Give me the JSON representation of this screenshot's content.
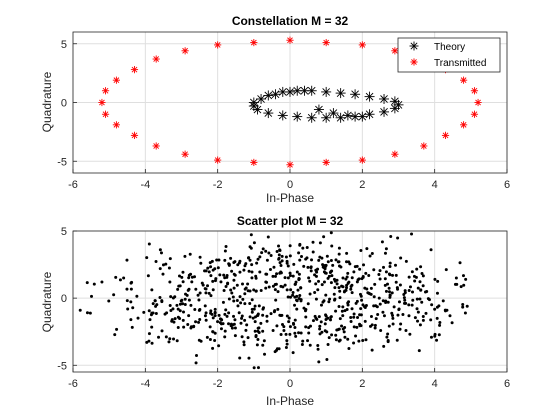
{
  "chart_data": [
    {
      "type": "scatter",
      "title": "Constellation M = 32",
      "xlabel": "In-Phase",
      "ylabel": "Quadrature",
      "xlim": [
        -6,
        6
      ],
      "ylim": [
        -6,
        6
      ],
      "xticks": [
        -6,
        -4,
        -2,
        0,
        2,
        4,
        6
      ],
      "yticks": [
        -5,
        0,
        5
      ],
      "grid": true,
      "legend_position": "top-right",
      "legend": [
        "Theory",
        "Transmitted"
      ],
      "series": [
        {
          "name": "Theory",
          "marker": "asterisk",
          "color": "#000000",
          "note_cluster_center": [
            1.0,
            -0.2
          ],
          "x": [
            -1.0,
            -0.6,
            -0.2,
            0.2,
            0.6,
            1.0,
            1.4,
            1.8,
            2.2,
            2.6,
            2.9,
            3.0,
            2.9,
            2.6,
            2.2,
            1.8,
            1.4,
            1.0,
            0.6,
            0.2,
            -0.2,
            -0.6,
            -0.9,
            -1.0,
            -0.8,
            -0.4,
            0.0,
            0.4,
            0.8,
            1.2,
            1.6,
            2.0
          ],
          "y": [
            0.0,
            0.6,
            0.9,
            1.0,
            1.0,
            0.9,
            0.8,
            0.7,
            0.5,
            0.3,
            0.1,
            -0.2,
            -0.5,
            -0.8,
            -1.0,
            -1.2,
            -1.3,
            -1.3,
            -1.3,
            -1.2,
            -1.1,
            -0.9,
            -0.6,
            -0.3,
            0.3,
            0.7,
            0.9,
            1.0,
            -0.6,
            -0.9,
            -1.1,
            -1.2
          ]
        },
        {
          "name": "Transmitted",
          "marker": "asterisk",
          "color": "#ff0000",
          "x": [
            0,
            1.0,
            2.0,
            2.9,
            3.7,
            4.3,
            4.8,
            5.1,
            5.2,
            5.1,
            4.8,
            4.3,
            3.7,
            2.9,
            2.0,
            1.0,
            0,
            -1.0,
            -2.0,
            -2.9,
            -3.7,
            -4.3,
            -4.8,
            -5.1,
            -5.2,
            -5.1,
            -4.8,
            -4.3,
            -3.7,
            -2.9,
            -2.0,
            -1.0
          ],
          "y": [
            5.3,
            5.1,
            4.9,
            4.4,
            3.7,
            2.8,
            1.9,
            1.0,
            0,
            -1.0,
            -1.9,
            -2.8,
            -3.7,
            -4.4,
            -4.9,
            -5.1,
            -5.3,
            -5.1,
            -4.9,
            -4.4,
            -3.7,
            -2.8,
            -1.9,
            -1.0,
            0,
            1.0,
            1.9,
            2.8,
            3.7,
            4.4,
            4.9,
            5.1
          ]
        }
      ]
    },
    {
      "type": "scatter",
      "title": "Scatter plot M = 32",
      "xlabel": "In-Phase",
      "ylabel": "Quadrature",
      "xlim": [
        -6,
        6
      ],
      "ylim": [
        -5.5,
        5
      ],
      "xticks": [
        -6,
        -4,
        -2,
        0,
        2,
        4,
        6
      ],
      "yticks": [
        -5,
        0,
        5
      ],
      "grid": true,
      "series": [
        {
          "name": "",
          "marker": "dot",
          "color": "#000000",
          "distribution": "ring of about 800 noisy received symbols, in-phase mostly between -5.8 and 5.0, quadrature mostly between -5.3 and 5.0, hollow centre of radius about 1",
          "x": [
            -5.8,
            -5.2,
            -4.6,
            -4.4,
            4.6,
            4.9,
            -3.9,
            3.9
          ],
          "y": [
            -0.9,
            1.2,
            1.5,
            -1.6,
            1.5,
            -0.6,
            -3.2,
            3.6
          ]
        }
      ]
    }
  ]
}
